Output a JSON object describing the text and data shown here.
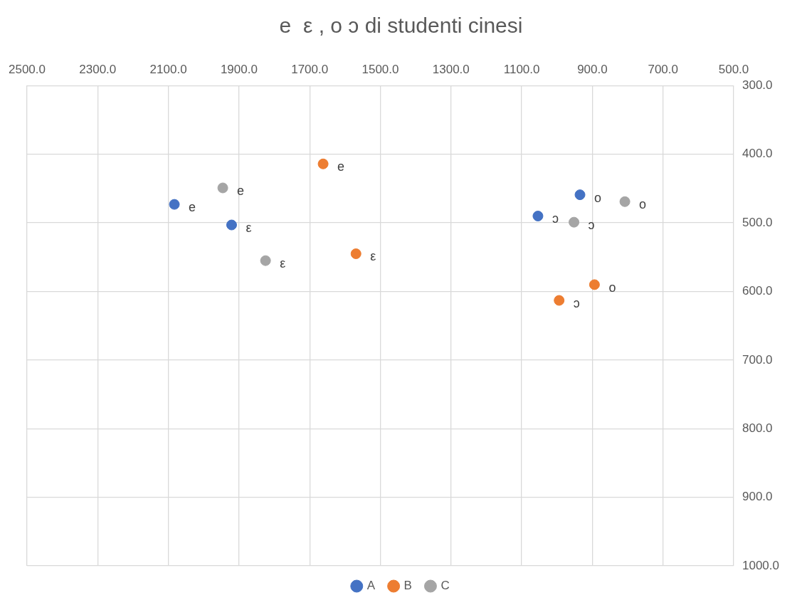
{
  "chart_data": {
    "type": "scatter",
    "title": "e  ε , o ɔ di studenti cinesi",
    "xlim": [
      2500,
      500
    ],
    "ylim": [
      1000,
      300
    ],
    "xticks": [
      {
        "value": 2500,
        "label": "2500.0"
      },
      {
        "value": 2300,
        "label": "2300.0"
      },
      {
        "value": 2100,
        "label": "2100.0"
      },
      {
        "value": 1900,
        "label": "1900.0"
      },
      {
        "value": 1700,
        "label": "1700.0"
      },
      {
        "value": 1500,
        "label": "1500.0"
      },
      {
        "value": 1300,
        "label": "1300.0"
      },
      {
        "value": 1100,
        "label": "1100.0"
      },
      {
        "value": 900,
        "label": "900.0"
      },
      {
        "value": 700,
        "label": "700.0"
      },
      {
        "value": 500,
        "label": "500.0"
      }
    ],
    "yticks": [
      {
        "value": 300,
        "label": "300.0"
      },
      {
        "value": 400,
        "label": "400.0"
      },
      {
        "value": 500,
        "label": "500.0"
      },
      {
        "value": 600,
        "label": "600.0"
      },
      {
        "value": 700,
        "label": "700.0"
      },
      {
        "value": 800,
        "label": "800.0"
      },
      {
        "value": 900,
        "label": "900.0"
      },
      {
        "value": 1000,
        "label": "1000.0"
      }
    ],
    "grid": true,
    "legend": "bottom",
    "marker": "circle",
    "series": [
      {
        "name": "A",
        "color": "#4472c4",
        "x": [
          2083,
          1921,
          1054,
          935
        ],
        "values": [
          473,
          503,
          490,
          459
        ],
        "value_labels": [
          "e",
          "ε",
          "ɔ",
          "o"
        ]
      },
      {
        "name": "B",
        "color": "#ed7d31",
        "x": [
          1662,
          1569,
          894,
          994
        ],
        "values": [
          414,
          545,
          590,
          613
        ],
        "value_labels": [
          "e",
          "ε",
          "o",
          "ɔ"
        ]
      },
      {
        "name": "C",
        "color": "#a5a5a5",
        "x": [
          1946,
          1825,
          952,
          808
        ],
        "values": [
          449,
          555,
          499,
          469
        ],
        "value_labels": [
          "e",
          "ε",
          "ɔ",
          "o"
        ]
      }
    ]
  }
}
